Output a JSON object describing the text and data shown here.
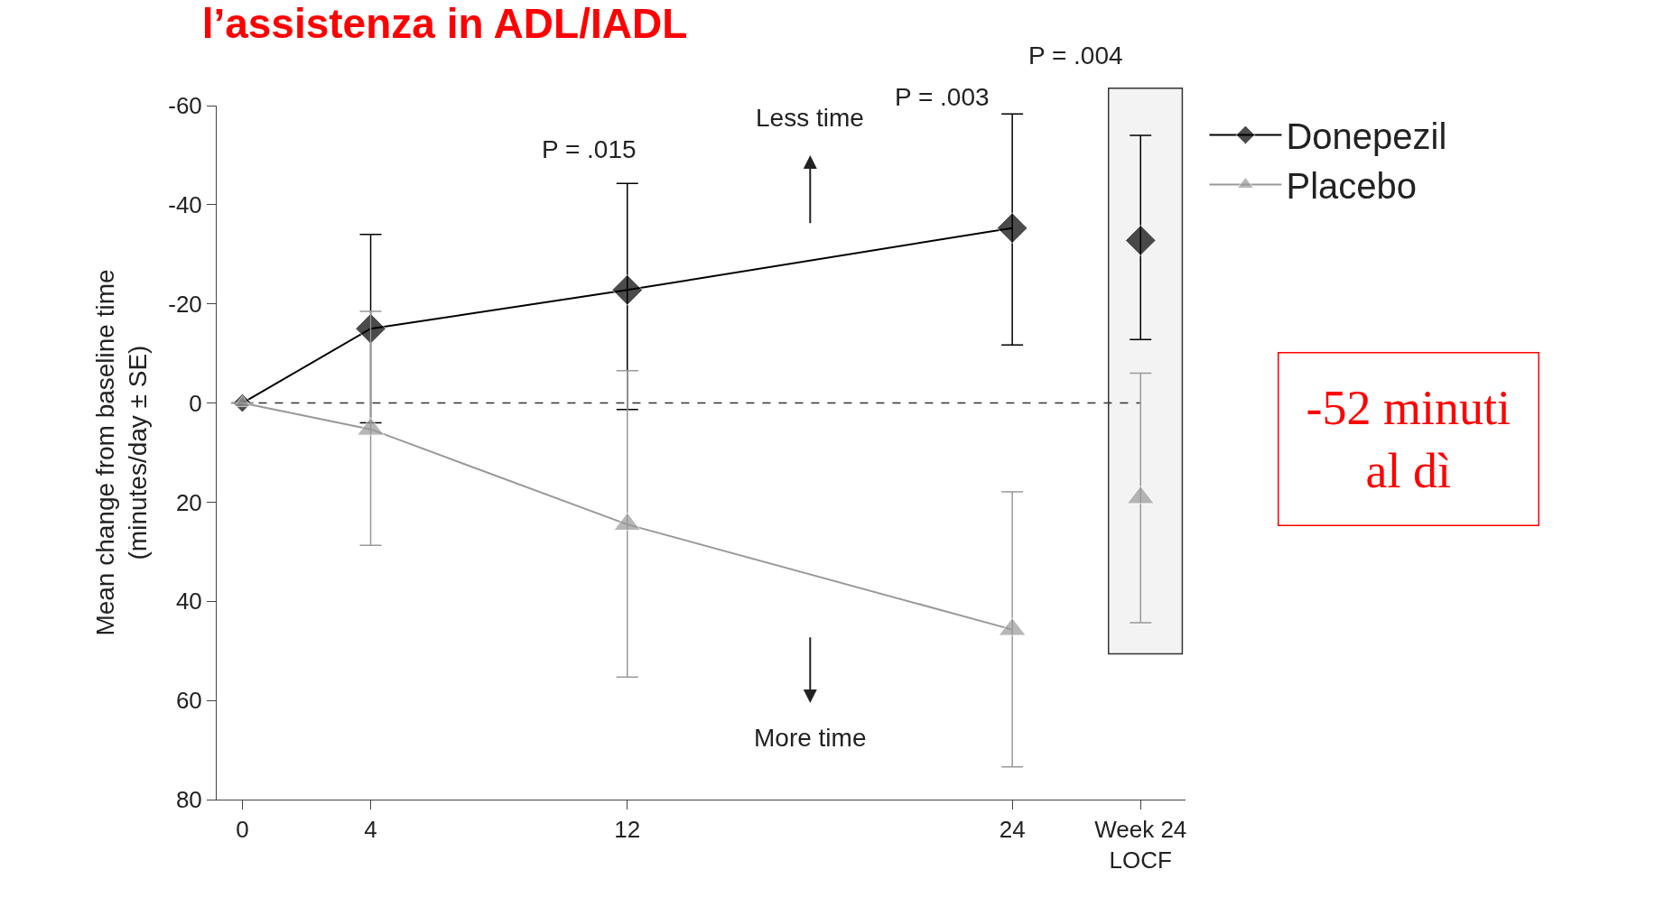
{
  "chart_data": {
    "type": "line",
    "title": "l’assistenza in ADL/IADL",
    "ylabel": "Mean change from baseline time\n(minutes/day ± SE)",
    "x": [
      0,
      4,
      12,
      24
    ],
    "series": [
      {
        "name": "Donepezil",
        "color": "#000000",
        "marker": "diamond",
        "values": [
          0,
          -15,
          -22.8,
          -35.3
        ],
        "errors": [
          null,
          [
            -34,
            4
          ],
          [
            -44.3,
            1.3
          ],
          [
            -58.3,
            -11.7
          ]
        ]
      },
      {
        "name": "Placebo",
        "color": "#999999",
        "marker": "triangle",
        "values": [
          0,
          5.3,
          24.5,
          45.7
        ],
        "errors": [
          null,
          [
            -18.5,
            28.7
          ],
          [
            -6.5,
            55.3
          ],
          [
            17.9,
            73.4
          ]
        ]
      },
      {
        "type": "scatter",
        "color": "#000000",
        "marker": "diamond",
        "x": [
          28
        ],
        "values": [
          -32.8
        ],
        "errors": [
          [
            -54,
            -12.8
          ]
        ]
      },
      {
        "type": "scatter",
        "color": "#999999",
        "marker": "triangle",
        "x": [
          28
        ],
        "values": [
          19.1
        ],
        "errors": [
          [
            -6,
            44.3
          ]
        ]
      }
    ],
    "xlim": [
      -0.8,
      29.4
    ],
    "ylim": [
      80,
      -60
    ],
    "xticks": [
      0,
      4,
      12,
      24,
      {
        "value": 28,
        "label": "Week 24\nLOCF"
      }
    ],
    "yticks": [
      -60,
      -40,
      -20,
      0,
      20,
      40,
      60,
      80
    ],
    "ref_lines": [
      {
        "axis": "y",
        "value": 0,
        "line_style": "dashed",
        "color": "#333333"
      }
    ],
    "bands": [
      {
        "axis": "x",
        "from": 27.0,
        "to": 29.3,
        "color": "#333333"
      }
    ],
    "annotations": [
      "P = .015",
      "P = .003",
      "P = .004",
      "Less time",
      "More time",
      "-52 minuti\nal dì"
    ],
    "grid": false,
    "legend": "top right",
    "line_style": "solid"
  }
}
